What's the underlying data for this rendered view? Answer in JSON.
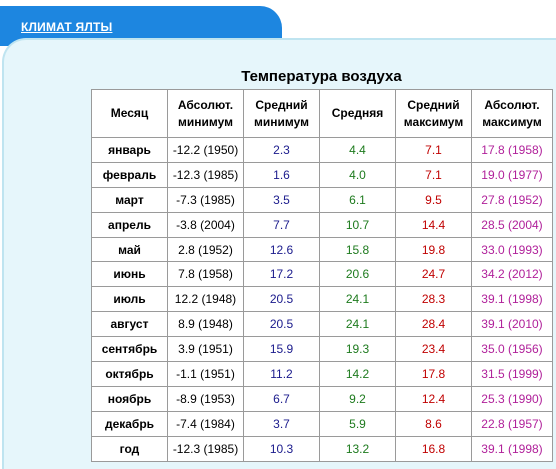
{
  "nav": {
    "tab_label": "КЛИМАТ ЯЛТЫ"
  },
  "table": {
    "title": "Температура воздуха",
    "headers": [
      "Месяц",
      "Абсолют. минимум",
      "Средний минимум",
      "Средняя",
      "Средний максимум",
      "Абсолют. максимум"
    ],
    "rows": [
      [
        "январь",
        "-12.2 (1950)",
        "2.3",
        "4.4",
        "7.1",
        "17.8 (1958)"
      ],
      [
        "февраль",
        "-12.3 (1985)",
        "1.6",
        "4.0",
        "7.1",
        "19.0 (1977)"
      ],
      [
        "март",
        "-7.3 (1985)",
        "3.5",
        "6.1",
        "9.5",
        "27.8 (1952)"
      ],
      [
        "апрель",
        "-3.8 (2004)",
        "7.7",
        "10.7",
        "14.4",
        "28.5 (2004)"
      ],
      [
        "май",
        "2.8 (1952)",
        "12.6",
        "15.8",
        "19.8",
        "33.0 (1993)"
      ],
      [
        "июнь",
        "7.8 (1958)",
        "17.2",
        "20.6",
        "24.7",
        "34.2 (2012)"
      ],
      [
        "июль",
        "12.2 (1948)",
        "20.5",
        "24.1",
        "28.3",
        "39.1 (1998)"
      ],
      [
        "август",
        "8.9 (1948)",
        "20.5",
        "24.1",
        "28.4",
        "39.1 (2010)"
      ],
      [
        "сентябрь",
        "3.9 (1951)",
        "15.9",
        "19.3",
        "23.4",
        "35.0 (1956)"
      ],
      [
        "октябрь",
        "-1.1 (1951)",
        "11.2",
        "14.2",
        "17.8",
        "31.5 (1999)"
      ],
      [
        "ноябрь",
        "-8.9 (1953)",
        "6.7",
        "9.2",
        "12.4",
        "25.3 (1990)"
      ],
      [
        "декабрь",
        "-7.4 (1984)",
        "3.7",
        "5.9",
        "8.6",
        "22.8 (1957)"
      ],
      [
        "год",
        "-12.3 (1985)",
        "10.3",
        "13.2",
        "16.8",
        "39.1 (1998)"
      ]
    ]
  },
  "colors": {
    "tab_bg": "#1d86e0",
    "panel_bg": "#e6f6fb",
    "mean_min": "#1a1a8c",
    "mean": "#1d7a1d",
    "mean_max": "#c00000",
    "abs_max": "#b0209a"
  }
}
